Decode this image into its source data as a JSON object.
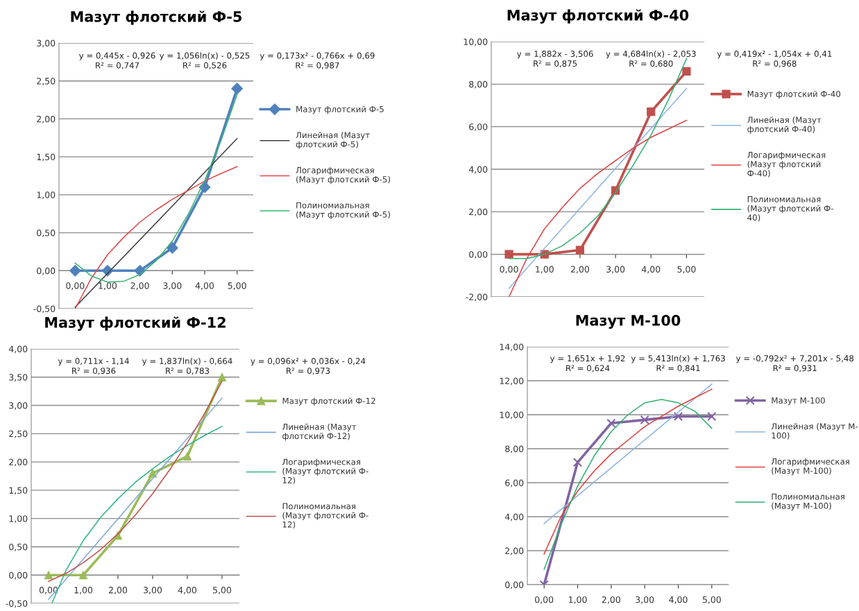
{
  "chart_data": [
    {
      "type": "line",
      "title": "Мазут флотский Ф-5",
      "legend": "right",
      "grid": "y",
      "xlim": [
        -0.5,
        5.5
      ],
      "xticks": [
        {
          "value": 0,
          "label": "0,00"
        },
        {
          "value": 1,
          "label": "1,00"
        },
        {
          "value": 2,
          "label": "2,00"
        },
        {
          "value": 3,
          "label": "3,00"
        },
        {
          "value": 4,
          "label": "4,00"
        },
        {
          "value": 5,
          "label": "5,00"
        }
      ],
      "ylim": [
        -0.5,
        3
      ],
      "yticks": [
        {
          "value": -0.5,
          "label": "-0,50"
        },
        {
          "value": 0,
          "label": "0,00"
        },
        {
          "value": 0.5,
          "label": "0,50"
        },
        {
          "value": 1,
          "label": "1,00"
        },
        {
          "value": 1.5,
          "label": "1,50"
        },
        {
          "value": 2,
          "label": "2,00"
        },
        {
          "value": 2.5,
          "label": "2,50"
        },
        {
          "value": 3,
          "label": "3,00"
        }
      ],
      "annotations": [
        "y = 0,445x - 0,926\nR² = 0,747",
        "y = 1,056ln(x) - 0,525\nR² = 0,526",
        "y = 0,173x² - 0,766x + 0,69\nR² = 0,987"
      ],
      "series": [
        {
          "name": "Мазут флотский Ф-5",
          "color": "#4f81bd",
          "marker": "diamond",
          "x": [
            0,
            1,
            2,
            3,
            4,
            5
          ],
          "values": [
            0,
            0,
            0,
            0.3,
            1.1,
            2.4
          ]
        },
        {
          "name": "Линейная (Мазут\nфлотский Ф-5)",
          "color": "#404040",
          "marker": "none",
          "x": [
            0,
            5
          ],
          "values": [
            -0.48,
            1.74
          ]
        },
        {
          "name": "Логарифмическая\n(Мазут флотский Ф-5)",
          "color": "#e04848",
          "marker": "none",
          "x": [
            0,
            0.5,
            1,
            1.5,
            2,
            2.5,
            3,
            3.5,
            4,
            4.5,
            5
          ],
          "values": [
            -0.5,
            -0.1,
            0.21,
            0.44,
            0.64,
            0.8,
            0.94,
            1.06,
            1.18,
            1.28,
            1.37
          ]
        },
        {
          "name": "Полиномиальная\n(Мазут флотский Ф-5)",
          "color": "#3cb371",
          "marker": "none",
          "x": [
            0,
            0.5,
            1,
            1.5,
            2,
            2.5,
            3,
            3.5,
            4,
            4.5,
            5
          ],
          "values": [
            0.1,
            -0.07,
            -0.15,
            -0.14,
            -0.05,
            0.13,
            0.39,
            0.75,
            1.19,
            1.71,
            2.32
          ]
        }
      ]
    },
    {
      "type": "line",
      "title": "Мазут флотский Ф-40",
      "legend": "right",
      "grid": "y",
      "xlim": [
        -0.5,
        5.5
      ],
      "xticks": [
        {
          "value": 0,
          "label": "0,00"
        },
        {
          "value": 1,
          "label": "1,00"
        },
        {
          "value": 2,
          "label": "2,00"
        },
        {
          "value": 3,
          "label": "3,00"
        },
        {
          "value": 4,
          "label": "4,00"
        },
        {
          "value": 5,
          "label": "5,00"
        }
      ],
      "ylim": [
        -2,
        10
      ],
      "yticks": [
        {
          "value": -2,
          "label": "-2,00"
        },
        {
          "value": 0,
          "label": "0,00"
        },
        {
          "value": 2,
          "label": "2,00"
        },
        {
          "value": 4,
          "label": "4,00"
        },
        {
          "value": 6,
          "label": "6,00"
        },
        {
          "value": 8,
          "label": "8,00"
        },
        {
          "value": 10,
          "label": "10,00"
        }
      ],
      "annotations": [
        "y = 1,882x - 3,506\nR² = 0,875",
        "y = 4,684ln(x) - 2,053\nR² = 0,680",
        "y = 0,419x² - 1,054x + 0,41\nR² = 0,968"
      ],
      "series": [
        {
          "name": "Мазут флотский Ф-40",
          "color": "#c0504d",
          "marker": "square",
          "x": [
            0,
            1,
            2,
            3,
            4,
            5
          ],
          "values": [
            0,
            0,
            0.2,
            3,
            6.7,
            8.6
          ]
        },
        {
          "name": "Линейная (Мазут\nфлотский Ф-40)",
          "color": "#8db3e2",
          "marker": "none",
          "x": [
            0,
            5
          ],
          "values": [
            -1.6,
            7.8
          ]
        },
        {
          "name": "Логарифмическая\n(Мазут флотский\nФ-40)",
          "color": "#e04040",
          "marker": "none",
          "x": [
            0,
            0.5,
            1,
            1.5,
            2,
            2.5,
            3,
            3.5,
            4,
            4.5,
            5
          ],
          "values": [
            -2,
            -0.2,
            1.2,
            2.2,
            3.1,
            3.8,
            4.4,
            5,
            5.5,
            5.9,
            6.3
          ]
        },
        {
          "name": "Полиномиальная\n(Мазут флотский Ф-\n40)",
          "color": "#30b070",
          "marker": "none",
          "x": [
            0,
            0.5,
            1,
            1.5,
            2,
            2.5,
            3,
            3.5,
            4,
            4.5,
            5
          ],
          "values": [
            -0.2,
            -0.2,
            0,
            0.4,
            1,
            1.8,
            2.9,
            4.2,
            5.6,
            7.3,
            9.2
          ]
        }
      ]
    },
    {
      "type": "line",
      "title": "Мазут флотский Ф-12",
      "legend": "right",
      "grid": "y",
      "xlim": [
        -0.5,
        5.5
      ],
      "xticks": [
        {
          "value": 0,
          "label": "0,00"
        },
        {
          "value": 1,
          "label": "1,00"
        },
        {
          "value": 2,
          "label": "2,00"
        },
        {
          "value": 3,
          "label": "3,00"
        },
        {
          "value": 4,
          "label": "4,00"
        },
        {
          "value": 5,
          "label": "5,00"
        }
      ],
      "ylim": [
        -0.5,
        4
      ],
      "yticks": [
        {
          "value": -0.5,
          "label": "-0,50"
        },
        {
          "value": 0,
          "label": "0,00"
        },
        {
          "value": 0.5,
          "label": "0,50"
        },
        {
          "value": 1,
          "label": "1,00"
        },
        {
          "value": 1.5,
          "label": "1,50"
        },
        {
          "value": 2,
          "label": "2,00"
        },
        {
          "value": 2.5,
          "label": "2,50"
        },
        {
          "value": 3,
          "label": "3,00"
        },
        {
          "value": 3.5,
          "label": "3,50"
        },
        {
          "value": 4,
          "label": "4,00"
        }
      ],
      "annotations": [
        "y = 0,711x - 1,14\nR² = 0,936",
        "y = 1,837ln(x) - 0,664\nR² = 0,783",
        "y = 0,096x² + 0,036x - 0,24\nR² = 0,973"
      ],
      "series": [
        {
          "name": "Мазут флотский Ф-12",
          "color": "#9bbb59",
          "marker": "triangle",
          "x": [
            0,
            1,
            2,
            3,
            4,
            5
          ],
          "values": [
            0,
            0,
            0.7,
            1.8,
            2.1,
            3.5
          ]
        },
        {
          "name": "Линейная (Мазут\nфлотский Ф-12)",
          "color": "#7fa7d6",
          "marker": "none",
          "x": [
            0,
            5
          ],
          "values": [
            -0.43,
            3.13
          ]
        },
        {
          "name": "Логарифмическая\n(Мазут флотский Ф-\n12)",
          "color": "#2fb38a",
          "marker": "none",
          "x": [
            0.1,
            0.5,
            1,
            1.5,
            2,
            2.5,
            3,
            3.5,
            4,
            4.5,
            5
          ],
          "values": [
            -0.49,
            0.08,
            0.61,
            1.02,
            1.35,
            1.64,
            1.88,
            2.1,
            2.29,
            2.47,
            2.63
          ]
        },
        {
          "name": "Полиномиальная\n(Мазут флотский Ф-\n12)",
          "color": "#c0504d",
          "marker": "none",
          "x": [
            0,
            0.5,
            1,
            1.5,
            2,
            2.5,
            3,
            3.5,
            4,
            4.5,
            5
          ],
          "values": [
            -0.11,
            0.03,
            0.22,
            0.45,
            0.73,
            1.06,
            1.44,
            1.87,
            2.34,
            2.86,
            3.43
          ]
        }
      ]
    },
    {
      "type": "line",
      "title": "Мазут М-100",
      "legend": "right",
      "grid": "y",
      "xlim": [
        -0.5,
        5.5
      ],
      "xticks": [
        {
          "value": 0,
          "label": "0,00"
        },
        {
          "value": 1,
          "label": "1,00"
        },
        {
          "value": 2,
          "label": "2,00"
        },
        {
          "value": 3,
          "label": "3,00"
        },
        {
          "value": 4,
          "label": "4,00"
        },
        {
          "value": 5,
          "label": "5,00"
        }
      ],
      "ylim": [
        0,
        14
      ],
      "yticks": [
        {
          "value": 0,
          "label": "0,00"
        },
        {
          "value": 2,
          "label": "2,00"
        },
        {
          "value": 4,
          "label": "4,00"
        },
        {
          "value": 6,
          "label": "6,00"
        },
        {
          "value": 8,
          "label": "8,00"
        },
        {
          "value": 10,
          "label": "10,00"
        },
        {
          "value": 12,
          "label": "12,00"
        },
        {
          "value": 14,
          "label": "14,00"
        }
      ],
      "annotations": [
        "y = 1,651x + 1,92\nR² = 0,624",
        "y = 5,413ln(x) + 1,763\nR² = 0,841",
        "y = -0,792x² + 7,201x - 5,48\nR² = 0,931"
      ],
      "series": [
        {
          "name": "Мазут М-100",
          "color": "#8064a2",
          "marker": "cross",
          "x": [
            0,
            1,
            2,
            3,
            4,
            5
          ],
          "values": [
            0,
            7.2,
            9.5,
            9.7,
            9.9,
            9.9
          ]
        },
        {
          "name": "Линейная (Мазут М-\n100)",
          "color": "#8db3e2",
          "marker": "none",
          "x": [
            0,
            5
          ],
          "values": [
            3.6,
            11.8
          ]
        },
        {
          "name": "Логарифмическая\n(Мазут М-100)",
          "color": "#e04040",
          "marker": "none",
          "x": [
            0,
            0.5,
            1,
            1.5,
            2,
            2.5,
            3,
            3.5,
            4,
            4.5,
            5
          ],
          "values": [
            1.8,
            4,
            5.5,
            6.7,
            7.7,
            8.5,
            9.3,
            9.9,
            10.5,
            11,
            11.5
          ]
        },
        {
          "name": "Полиномиальная\n(Мазут М-100)",
          "color": "#30b070",
          "marker": "none",
          "x": [
            0,
            0.5,
            1,
            1.5,
            2,
            2.5,
            3,
            3.5,
            4,
            4.5,
            5
          ],
          "values": [
            0.9,
            3.5,
            5.8,
            7.6,
            9,
            10,
            10.7,
            10.9,
            10.7,
            10.2,
            9.2
          ]
        }
      ]
    }
  ]
}
